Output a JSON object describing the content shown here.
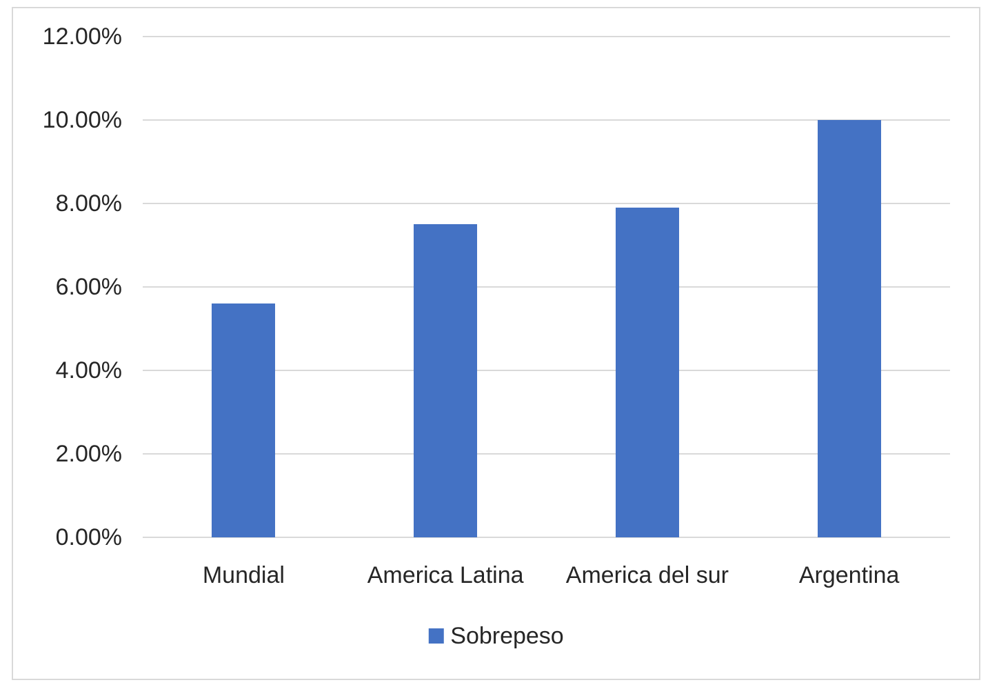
{
  "chart_data": {
    "type": "bar",
    "title": "",
    "xlabel": "",
    "ylabel": "",
    "categories": [
      "Mundial",
      "America Latina",
      "America del sur",
      "Argentina"
    ],
    "series": [
      {
        "name": "Sobrepeso",
        "values": [
          5.6,
          7.5,
          7.9,
          10.0
        ]
      }
    ],
    "value_unit": "%",
    "ylim": [
      0,
      12
    ],
    "ytick_step": 2,
    "ytick_labels": [
      "0.00%",
      "2.00%",
      "4.00%",
      "6.00%",
      "8.00%",
      "10.00%",
      "12.00%"
    ],
    "grid": true,
    "legend": {
      "position": "bottom",
      "entries": [
        "Sobrepeso"
      ]
    },
    "colors": {
      "bar": "#4472C4",
      "gridline": "#D9D9D9",
      "frame_border": "#D9D9D9",
      "text": "#262626",
      "background": "#FFFFFF"
    }
  }
}
